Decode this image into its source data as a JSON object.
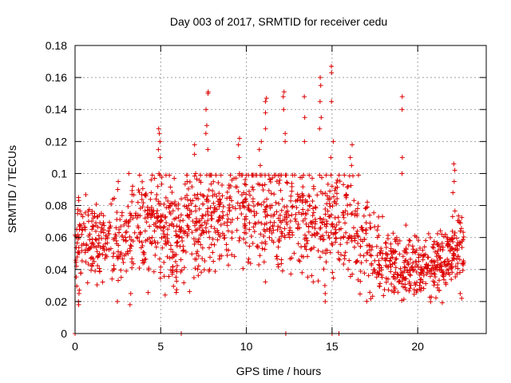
{
  "chart_data": {
    "type": "scatter",
    "title": "Day 003 of 2017, SRMTID for receiver cedu",
    "xlabel": "GPS time / hours",
    "ylabel": "SRMTID / TECUs",
    "xlim": [
      0,
      24
    ],
    "ylim": [
      0,
      0.18
    ],
    "xticks": [
      0,
      5,
      10,
      15,
      20
    ],
    "xtick_labels": [
      "0",
      "5",
      "10",
      "15",
      "20"
    ],
    "yticks": [
      0,
      0.02,
      0.04,
      0.06,
      0.08,
      0.1,
      0.12,
      0.14,
      0.16,
      0.18
    ],
    "ytick_labels": [
      "0",
      "0.02",
      "0.04",
      "0.06",
      "0.08",
      "0.1",
      "0.12",
      "0.14",
      "0.16",
      "0.18"
    ],
    "grid": true,
    "marker": "+",
    "series": [
      {
        "name": "SRMTID",
        "color": "#dd0000",
        "profile": [
          {
            "t": 0.0,
            "mean": 0.055,
            "spread": 0.012
          },
          {
            "t": 1.0,
            "mean": 0.058,
            "spread": 0.012
          },
          {
            "t": 2.0,
            "mean": 0.057,
            "spread": 0.012
          },
          {
            "t": 3.0,
            "mean": 0.06,
            "spread": 0.014
          },
          {
            "t": 4.0,
            "mean": 0.065,
            "spread": 0.015
          },
          {
            "t": 5.0,
            "mean": 0.067,
            "spread": 0.016
          },
          {
            "t": 6.0,
            "mean": 0.062,
            "spread": 0.015
          },
          {
            "t": 7.0,
            "mean": 0.07,
            "spread": 0.017
          },
          {
            "t": 8.0,
            "mean": 0.074,
            "spread": 0.018
          },
          {
            "t": 9.0,
            "mean": 0.075,
            "spread": 0.018
          },
          {
            "t": 10.0,
            "mean": 0.077,
            "spread": 0.018
          },
          {
            "t": 11.0,
            "mean": 0.075,
            "spread": 0.018
          },
          {
            "t": 12.0,
            "mean": 0.074,
            "spread": 0.018
          },
          {
            "t": 13.0,
            "mean": 0.072,
            "spread": 0.017
          },
          {
            "t": 14.0,
            "mean": 0.07,
            "spread": 0.017
          },
          {
            "t": 15.0,
            "mean": 0.07,
            "spread": 0.018
          },
          {
            "t": 16.0,
            "mean": 0.068,
            "spread": 0.017
          },
          {
            "t": 17.0,
            "mean": 0.058,
            "spread": 0.015
          },
          {
            "t": 18.0,
            "mean": 0.046,
            "spread": 0.011
          },
          {
            "t": 19.0,
            "mean": 0.043,
            "spread": 0.01
          },
          {
            "t": 20.0,
            "mean": 0.043,
            "spread": 0.01
          },
          {
            "t": 21.0,
            "mean": 0.043,
            "spread": 0.01
          },
          {
            "t": 22.0,
            "mean": 0.05,
            "spread": 0.011
          },
          {
            "t": 22.7,
            "mean": 0.055,
            "spread": 0.011
          }
        ],
        "spikes": [
          {
            "t": 0.2,
            "values": [
              0.085,
              0.075,
              0.065,
              0.025,
              0.02,
              0.018
            ]
          },
          {
            "t": 2.5,
            "values": [
              0.095,
              0.09,
              0.02
            ]
          },
          {
            "t": 3.2,
            "values": [
              0.1,
              0.025,
              0.018
            ]
          },
          {
            "t": 4.9,
            "values": [
              0.128,
              0.125,
              0.12,
              0.115,
              0.11,
              0.1
            ]
          },
          {
            "t": 7.7,
            "values": [
              0.151,
              0.15,
              0.14,
              0.13,
              0.125,
              0.115
            ]
          },
          {
            "t": 7.0,
            "values": [
              0.118,
              0.112,
              0.1
            ]
          },
          {
            "t": 9.6,
            "values": [
              0.122,
              0.118,
              0.11,
              0.1
            ]
          },
          {
            "t": 10.8,
            "values": [
              0.12,
              0.115,
              0.105
            ]
          },
          {
            "t": 11.1,
            "values": [
              0.147,
              0.145,
              0.138,
              0.128
            ]
          },
          {
            "t": 12.2,
            "values": [
              0.151,
              0.148,
              0.14,
              0.125,
              0.12
            ]
          },
          {
            "t": 13.4,
            "values": [
              0.148,
              0.135,
              0.12
            ]
          },
          {
            "t": 14.3,
            "values": [
              0.16,
              0.155,
              0.145,
              0.135,
              0.128
            ]
          },
          {
            "t": 14.6,
            "values": [
              0.025,
              0.02,
              0.03
            ]
          },
          {
            "t": 15.0,
            "values": [
              0.167,
              0.163,
              0.145,
              0.12,
              0.11
            ]
          },
          {
            "t": 16.1,
            "values": [
              0.118,
              0.11,
              0.105
            ]
          },
          {
            "t": 19.1,
            "values": [
              0.148,
              0.14,
              0.11,
              0.1
            ]
          },
          {
            "t": 22.1,
            "values": [
              0.106,
              0.102,
              0.095,
              0.088
            ]
          },
          {
            "t": 22.5,
            "values": [
              0.025,
              0.022
            ]
          }
        ],
        "zero_points": [
          0.0,
          6.2,
          12.3,
          15.0,
          15.4
        ],
        "sample_count": 1600
      }
    ]
  }
}
